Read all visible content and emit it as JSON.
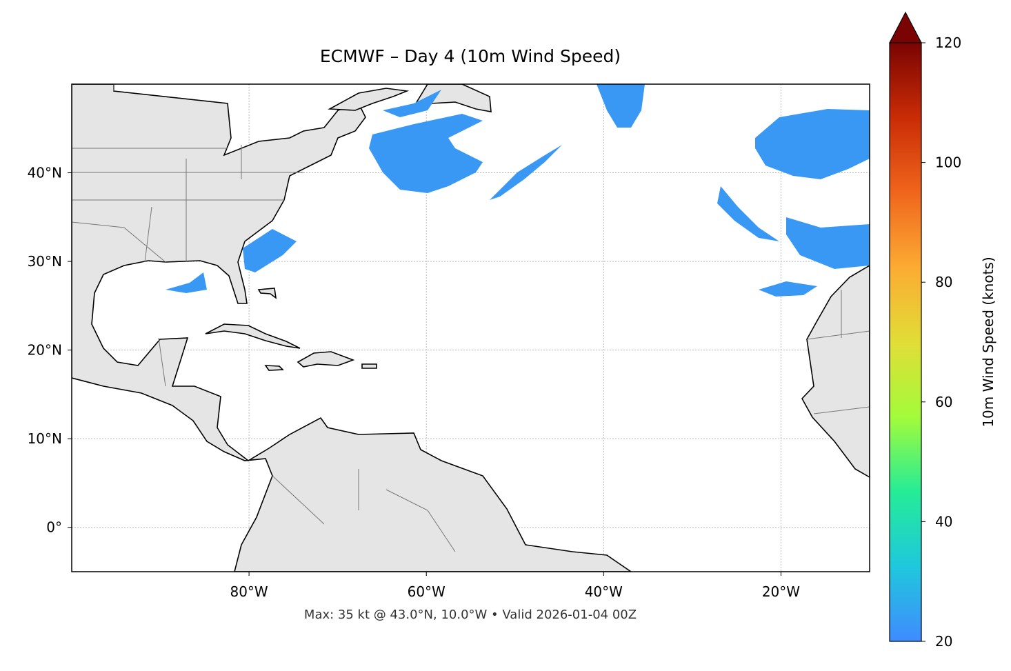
{
  "chart_data": {
    "type": "map",
    "title": "ECMWF – Day 4 (10m Wind Speed)",
    "footnote": "Max: 35 kt @ 43.0°N, 10.0°W • Valid 2026-01-04 00Z",
    "xlim": [
      -100,
      -10
    ],
    "ylim": [
      -5,
      50
    ],
    "xticks": [
      {
        "value": -80,
        "label": "80°W"
      },
      {
        "value": -60,
        "label": "60°W"
      },
      {
        "value": -40,
        "label": "40°W"
      },
      {
        "value": -20,
        "label": "20°W"
      }
    ],
    "yticks": [
      {
        "value": 0,
        "label": "0°"
      },
      {
        "value": 10,
        "label": "10°N"
      },
      {
        "value": 20,
        "label": "20°N"
      },
      {
        "value": 30,
        "label": "30°N"
      },
      {
        "value": 40,
        "label": "40°N"
      }
    ],
    "grid": true,
    "colorbar": {
      "label": "10m Wind Speed (knots)",
      "lim": [
        20,
        120
      ],
      "ticks": [
        20,
        40,
        60,
        80,
        100,
        120
      ],
      "colors": [
        "#3f8bff",
        "#1fc8dc",
        "#25ec97",
        "#a4fb3a",
        "#e1dd37",
        "#fcab33",
        "#f0651c",
        "#c92c06",
        "#7a0403"
      ]
    }
  }
}
